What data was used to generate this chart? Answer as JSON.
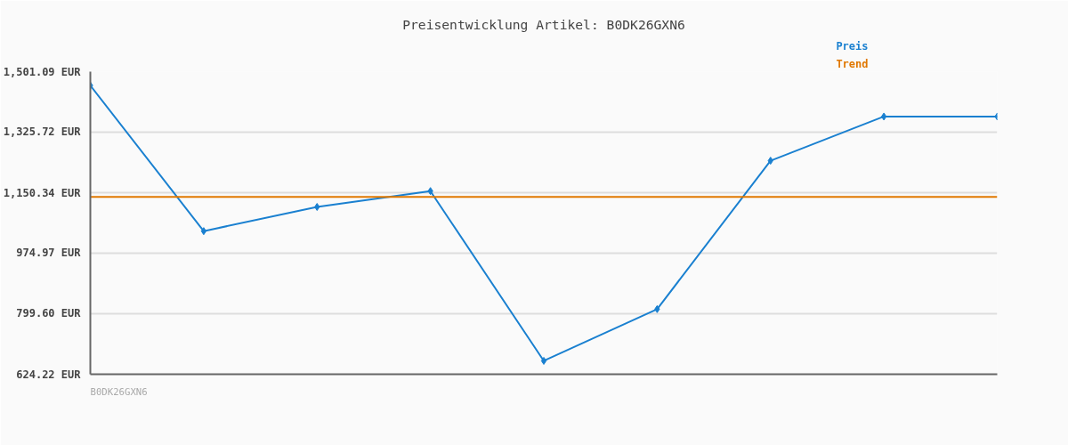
{
  "chart_data": {
    "type": "line",
    "title": "Preisentwicklung Artikel: B0DK26GXN6",
    "categories": [
      null,
      null,
      null,
      null,
      null,
      null,
      null,
      null,
      null
    ],
    "series": [
      {
        "name": "Preis",
        "color": "#1a80d0",
        "values": [
          1461,
          1039,
          1109,
          1155,
          663,
          813,
          1243,
          1371,
          1371
        ],
        "marker": "diamond"
      },
      {
        "name": "Trend",
        "color": "#e07800",
        "values": [
          1138,
          1138,
          1138,
          1138,
          1138,
          1138,
          1138,
          1138,
          1138
        ],
        "marker": "none"
      }
    ],
    "ylim": [
      624.22,
      1501.09
    ],
    "yticks": [
      {
        "value": 624.22,
        "label": "624.22 EUR"
      },
      {
        "value": 799.6,
        "label": "799.60 EUR"
      },
      {
        "value": 974.97,
        "label": "974.97 EUR"
      },
      {
        "value": 1150.34,
        "label": "1,150.34 EUR"
      },
      {
        "value": 1325.72,
        "label": "1,325.72 EUR"
      },
      {
        "value": 1501.09,
        "label": "1,501.09 EUR"
      }
    ],
    "grid": "y",
    "line_style": "solid",
    "annotations": [
      "B0DK26GXN6"
    ]
  }
}
